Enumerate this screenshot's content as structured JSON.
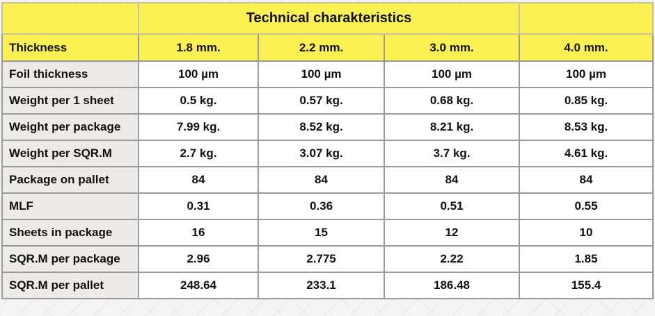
{
  "title": "Technical charakteristics",
  "colors": {
    "header_yellow": "#fbf152",
    "label_gray": "#ecebe8",
    "cell_white": "#ffffff",
    "border": "#9a9a9a"
  },
  "header": {
    "label": "Thickness",
    "columns": [
      "1.8 mm.",
      "2.2 mm.",
      "3.0 mm.",
      "4.0 mm."
    ]
  },
  "rows": [
    {
      "label": "Foil thickness",
      "values": [
        "100 µm",
        "100 µm",
        "100 µm",
        "100 µm"
      ]
    },
    {
      "label": "Weight per 1 sheet",
      "values": [
        "0.5 kg.",
        "0.57 kg.",
        "0.68 kg.",
        "0.85 kg."
      ]
    },
    {
      "label": "Weight per package",
      "values": [
        "7.99 kg.",
        "8.52 kg.",
        "8.21 kg.",
        "8.53 kg."
      ]
    },
    {
      "label": "Weight per SQR.M",
      "values": [
        "2.7 kg.",
        "3.07 kg.",
        "3.7 kg.",
        "4.61 kg."
      ]
    },
    {
      "label": "Package on pallet",
      "values": [
        "84",
        "84",
        "84",
        "84"
      ]
    },
    {
      "label": "MLF",
      "values": [
        "0.31",
        "0.36",
        "0.51",
        "0.55"
      ]
    },
    {
      "label": "Sheets in package",
      "values": [
        "16",
        "15",
        "12",
        "10"
      ]
    },
    {
      "label": "SQR.M per package",
      "values": [
        "2.96",
        "2.775",
        "2.22",
        "1.85"
      ]
    },
    {
      "label": "SQR.M per pallet",
      "values": [
        "248.64",
        "233.1",
        "186.48",
        "155.4"
      ]
    }
  ]
}
